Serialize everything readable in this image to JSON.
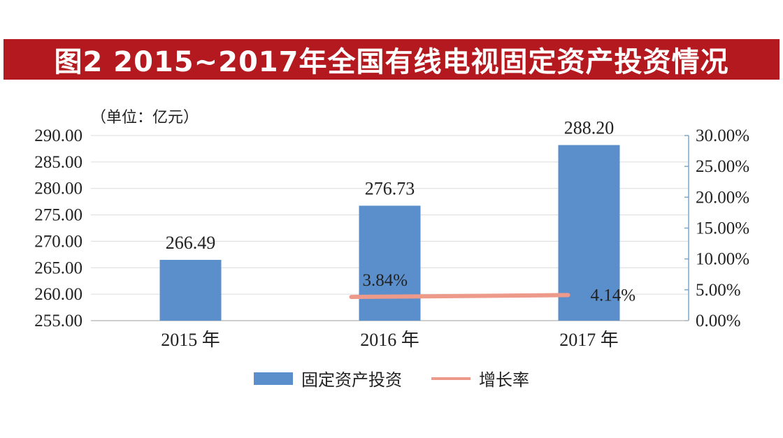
{
  "title": "图2 2015~2017年全国有线电视固定资产投资情况",
  "unit_label": "（单位：亿元）",
  "colors": {
    "title_band": "#b3191e",
    "bar": "#5b8fcb",
    "line": "#ee9a8a",
    "axis": "#7fa7c9",
    "grid": "#dcdcdc"
  },
  "legend": {
    "bar_label": "固定资产投资",
    "line_label": "增长率"
  },
  "chart_data": {
    "type": "bar",
    "categories": [
      "2015 年",
      "2016 年",
      "2017 年"
    ],
    "series": [
      {
        "name": "固定资产投资",
        "type": "bar",
        "axis": "left",
        "values": [
          266.49,
          276.73,
          288.2
        ],
        "labels": [
          "266.49",
          "276.73",
          "288.20"
        ]
      },
      {
        "name": "增长率",
        "type": "line",
        "axis": "right",
        "values": [
          null,
          3.84,
          4.14
        ],
        "labels": [
          "",
          "3.84%",
          "4.14%"
        ]
      }
    ],
    "y_left": {
      "min": 255,
      "max": 290,
      "ticks": [
        "255.00",
        "260.00",
        "265.00",
        "270.00",
        "275.00",
        "280.00",
        "285.00",
        "290.00"
      ]
    },
    "y_right": {
      "min": 0,
      "max": 30,
      "ticks": [
        "0.00%",
        "5.00%",
        "10.00%",
        "15.00%",
        "20.00%",
        "25.00%",
        "30.00%"
      ]
    },
    "grid": true,
    "legend_position": "bottom"
  }
}
